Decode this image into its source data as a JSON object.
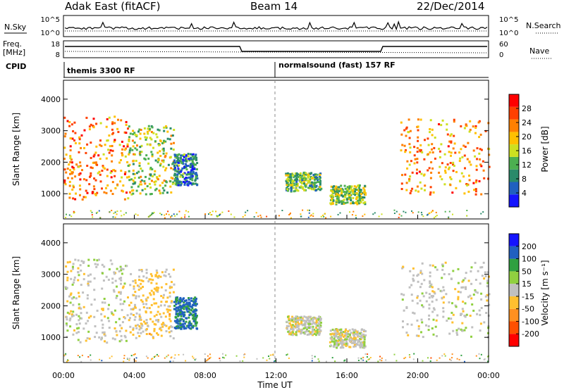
{
  "header": {
    "station": "Adak East (fitACF)",
    "beam": "Beam 14",
    "date": "22/Dec/2014"
  },
  "left_labels": {
    "nsky": "N.Sky",
    "freq_line1": "Freq.",
    "freq_line2": "[MHz]",
    "cpid": "CPID"
  },
  "right_labels": {
    "nsearch": "N.Search",
    "nave": "Nave"
  },
  "noise_panel": {
    "left_ticks": [
      "10^5",
      "10^0"
    ],
    "right_ticks": [
      "10^5",
      "10^0"
    ]
  },
  "freq_panel": {
    "left_ticks": [
      "18",
      "8"
    ],
    "right_ticks": [
      "60",
      "0"
    ]
  },
  "cpid_panel": {
    "segments": [
      {
        "label": "themis 3300 RF",
        "start_hour": 0
      },
      {
        "label": "normalsound (fast) 157 RF",
        "start_hour": 12
      }
    ]
  },
  "colors": {
    "power_scale": [
      "#1414ff",
      "#2060c0",
      "#2a8a6a",
      "#4caf50",
      "#cde020",
      "#ffc000",
      "#ff8000",
      "#ff4000",
      "#ff0000"
    ],
    "velocity_scale": [
      "#ff0000",
      "#ff5000",
      "#ff9020",
      "#ffc030",
      "#c0c0c0",
      "#90d040",
      "#30a040",
      "#2060c0",
      "#1414ff"
    ]
  },
  "chart_data": [
    {
      "type": "heatmap",
      "name": "power",
      "xlabel": "Time UT",
      "ylabel": "Slant Range [km]",
      "xlim": [
        0,
        24
      ],
      "ylim": [
        200,
        4600
      ],
      "y_ticks": [
        "1000",
        "2000",
        "3000",
        "4000"
      ],
      "colorbar_label": "Power [dB]",
      "colorbar_ticks": [
        "4",
        "8",
        "12",
        "16",
        "20",
        "24",
        "28"
      ],
      "colorbar_range": [
        0,
        32
      ],
      "regions": [
        {
          "t0": 0.0,
          "t1": 3.6,
          "r0": 850,
          "r1": 3500,
          "level": 24
        },
        {
          "t0": 3.6,
          "t1": 6.2,
          "r0": 1000,
          "r1": 3200,
          "level": 16
        },
        {
          "t0": 6.2,
          "t1": 7.5,
          "r0": 1300,
          "r1": 2300,
          "level": 8
        },
        {
          "t0": 12.5,
          "t1": 14.5,
          "r0": 1100,
          "r1": 1700,
          "level": 12
        },
        {
          "t0": 15.0,
          "t1": 17.0,
          "r0": 700,
          "r1": 1300,
          "level": 14
        },
        {
          "t0": 19.0,
          "t1": 24.0,
          "r0": 1000,
          "r1": 3400,
          "level": 22
        }
      ]
    },
    {
      "type": "heatmap",
      "name": "velocity",
      "xlabel": "Time UT",
      "ylabel": "Slant Range [km]",
      "xlim": [
        0,
        24
      ],
      "ylim": [
        200,
        4600
      ],
      "y_ticks": [
        "1000",
        "2000",
        "3000",
        "4000"
      ],
      "x_ticks": [
        "00:00",
        "04:00",
        "08:00",
        "12:00",
        "16:00",
        "20:00",
        "00:00"
      ],
      "colorbar_label": "Velocity [m s⁻¹]",
      "colorbar_ticks": [
        "-200",
        "-100",
        "-50",
        "-15",
        "15",
        "50",
        "100",
        "200"
      ],
      "colorbar_range": [
        -250,
        250
      ],
      "regions": [
        {
          "t0": 0.0,
          "t1": 3.6,
          "r0": 850,
          "r1": 3500,
          "level": 0
        },
        {
          "t0": 3.6,
          "t1": 6.2,
          "r0": 1000,
          "r1": 3200,
          "level": -40
        },
        {
          "t0": 6.2,
          "t1": 7.5,
          "r0": 1300,
          "r1": 2300,
          "level": 150
        },
        {
          "t0": 12.5,
          "t1": 14.5,
          "r0": 1100,
          "r1": 1700,
          "level": 0
        },
        {
          "t0": 15.0,
          "t1": 17.0,
          "r0": 700,
          "r1": 1300,
          "level": 0
        },
        {
          "t0": 19.0,
          "t1": 24.0,
          "r0": 1000,
          "r1": 3400,
          "level": 0
        }
      ]
    }
  ]
}
